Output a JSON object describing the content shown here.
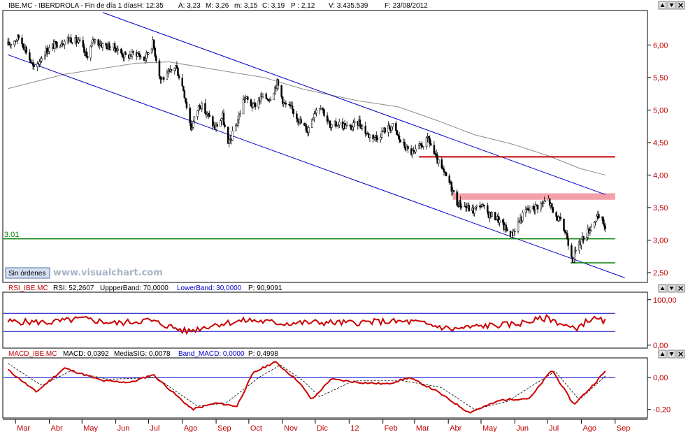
{
  "colors": {
    "price_axis": "#c00000",
    "channel": "#0000c8",
    "support": "#008000",
    "resistance": "#c80000",
    "zone": "#f4a0a8",
    "ma": "#8c8c8c",
    "rsi": "#cc0000",
    "macd": "#cc0000",
    "signal": "#000000"
  },
  "main_panel": {
    "header_symbol": "IBE.MC - IBERDROLA - Fin de día 1 días",
    "header_H": "H: 12:35",
    "header_A": "A: 3,23",
    "header_M": "M: 3,26",
    "header_m": "m: 3,15",
    "header_C": "C: 3,19",
    "header_P": "P : 2,12",
    "header_V": "V: 3.435.539",
    "header_F": "F: 23/08/2012",
    "level_label": "3.01",
    "orders_button": "Sin órdenes",
    "watermark": "www.visualchart.com"
  },
  "rsi_panel": {
    "name": "RSI_IBE.MC",
    "rsi": "RSI: 52,2607",
    "upper": "UppperBand: 70,0000",
    "lower": "LowerBand: 30,0000",
    "p": "P: 90,9091"
  },
  "macd_panel": {
    "name": "MACD_IBE.MC",
    "macd": "MACD: 0,0392",
    "signal": "MediaSIG: 0,0078",
    "band": "Band_MACD: 0,0000",
    "p": "P: 0,4998"
  },
  "window_icons": [
    "arrow-up-icon",
    "arrow-down-icon",
    "close-icon"
  ],
  "chart_data": [
    {
      "type": "candlestick",
      "y_tick_labels": [
        "6,00",
        "5,50",
        "5,00",
        "4,50",
        "4,00",
        "3,50",
        "3,00",
        "2,50"
      ],
      "y_ticks": [
        6.0,
        5.5,
        5.0,
        4.5,
        4.0,
        3.5,
        3.0,
        2.5
      ],
      "ylim": [
        2.36,
        6.52
      ],
      "x_tick_labels": [
        "Mar",
        "Abr",
        "May",
        "Jun",
        "Jul",
        "Ago",
        "Sep",
        "Oct",
        "Nov",
        "Dic",
        "12",
        "Feb",
        "Mar",
        "Abr",
        "May",
        "Jun",
        "Jul",
        "Ago",
        "Sep"
      ],
      "x_ticks": [
        "2011-03-01",
        "2011-04-01",
        "2011-05-01",
        "2011-06-01",
        "2011-07-01",
        "2011-08-01",
        "2011-09-01",
        "2011-10-01",
        "2011-11-01",
        "2011-12-01",
        "2012-01-01",
        "2012-02-01",
        "2012-03-01",
        "2012-04-01",
        "2012-05-01",
        "2012-06-01",
        "2012-07-01",
        "2012-08-01",
        "2012-09-01"
      ],
      "xlim": [
        "2011-02-18",
        "2012-09-30"
      ],
      "close_path": [
        [
          "2011-02-22",
          6.0
        ],
        [
          "2011-03-04",
          6.12
        ],
        [
          "2011-03-10",
          5.95
        ],
        [
          "2011-03-18",
          5.62
        ],
        [
          "2011-03-28",
          5.9
        ],
        [
          "2011-04-08",
          6.02
        ],
        [
          "2011-04-20",
          6.1
        ],
        [
          "2011-04-29",
          6.03
        ],
        [
          "2011-05-05",
          5.82
        ],
        [
          "2011-05-12",
          6.08
        ],
        [
          "2011-05-20",
          6.0
        ],
        [
          "2011-05-31",
          5.96
        ],
        [
          "2011-06-10",
          5.82
        ],
        [
          "2011-06-20",
          5.88
        ],
        [
          "2011-06-27",
          5.78
        ],
        [
          "2011-07-05",
          6.03
        ],
        [
          "2011-07-12",
          5.48
        ],
        [
          "2011-07-18",
          5.52
        ],
        [
          "2011-07-26",
          5.68
        ],
        [
          "2011-08-02",
          5.32
        ],
        [
          "2011-08-09",
          4.72
        ],
        [
          "2011-08-17",
          5.1
        ],
        [
          "2011-08-25",
          4.9
        ],
        [
          "2011-08-31",
          4.72
        ],
        [
          "2011-09-07",
          4.9
        ],
        [
          "2011-09-12",
          4.45
        ],
        [
          "2011-09-20",
          4.8
        ],
        [
          "2011-09-27",
          5.2
        ],
        [
          "2011-10-05",
          5.05
        ],
        [
          "2011-10-13",
          5.2
        ],
        [
          "2011-10-20",
          5.18
        ],
        [
          "2011-10-27",
          5.42
        ],
        [
          "2011-11-02",
          5.1
        ],
        [
          "2011-11-10",
          5.0
        ],
        [
          "2011-11-18",
          4.8
        ],
        [
          "2011-11-24",
          4.68
        ],
        [
          "2011-11-30",
          4.98
        ],
        [
          "2011-12-06",
          5.08
        ],
        [
          "2011-12-15",
          4.72
        ],
        [
          "2011-12-22",
          4.8
        ],
        [
          "2012-01-02",
          4.72
        ],
        [
          "2012-01-10",
          4.82
        ],
        [
          "2012-01-18",
          4.62
        ],
        [
          "2012-01-26",
          4.58
        ],
        [
          "2012-02-03",
          4.7
        ],
        [
          "2012-02-10",
          4.75
        ],
        [
          "2012-02-17",
          4.52
        ],
        [
          "2012-02-24",
          4.38
        ],
        [
          "2012-03-01",
          4.33
        ],
        [
          "2012-03-07",
          4.45
        ],
        [
          "2012-03-14",
          4.55
        ],
        [
          "2012-03-20",
          4.28
        ],
        [
          "2012-03-28",
          4.02
        ],
        [
          "2012-04-03",
          3.85
        ],
        [
          "2012-04-09",
          3.58
        ],
        [
          "2012-04-16",
          3.52
        ],
        [
          "2012-04-24",
          3.45
        ],
        [
          "2012-04-30",
          3.55
        ],
        [
          "2012-05-08",
          3.4
        ],
        [
          "2012-05-15",
          3.35
        ],
        [
          "2012-05-22",
          3.2
        ],
        [
          "2012-05-29",
          3.08
        ],
        [
          "2012-06-05",
          3.3
        ],
        [
          "2012-06-11",
          3.45
        ],
        [
          "2012-06-18",
          3.5
        ],
        [
          "2012-06-25",
          3.55
        ],
        [
          "2012-07-02",
          3.62
        ],
        [
          "2012-07-06",
          3.42
        ],
        [
          "2012-07-12",
          3.3
        ],
        [
          "2012-07-18",
          3.1
        ],
        [
          "2012-07-24",
          2.72
        ],
        [
          "2012-07-27",
          2.82
        ],
        [
          "2012-08-01",
          3.0
        ],
        [
          "2012-08-06",
          3.1
        ],
        [
          "2012-08-10",
          3.22
        ],
        [
          "2012-08-15",
          3.35
        ],
        [
          "2012-08-20",
          3.3
        ],
        [
          "2012-08-23",
          3.19
        ]
      ],
      "moving_average": [
        [
          "2011-02-22",
          5.33
        ],
        [
          "2011-04-15",
          5.55
        ],
        [
          "2011-06-20",
          5.72
        ],
        [
          "2011-07-20",
          5.74
        ],
        [
          "2011-09-01",
          5.62
        ],
        [
          "2011-10-15",
          5.5
        ],
        [
          "2011-11-20",
          5.32
        ],
        [
          "2012-01-10",
          5.14
        ],
        [
          "2012-02-15",
          5.05
        ],
        [
          "2012-03-20",
          4.85
        ],
        [
          "2012-04-25",
          4.62
        ],
        [
          "2012-05-31",
          4.47
        ],
        [
          "2012-07-01",
          4.3
        ],
        [
          "2012-07-31",
          4.1
        ],
        [
          "2012-08-23",
          4.0
        ]
      ],
      "channel_upper": [
        [
          "2011-05-20",
          6.5
        ],
        [
          "2012-08-23",
          3.7
        ]
      ],
      "channel_lower": [
        [
          "2011-02-22",
          5.85
        ],
        [
          "2012-09-10",
          2.42
        ]
      ],
      "resistance_line": {
        "y": 4.28,
        "from": "2012-03-05",
        "to": "2012-09-01"
      },
      "resistance_zone": {
        "y0": 3.62,
        "y1": 3.72,
        "from": "2012-04-05",
        "to": "2012-09-01"
      },
      "support_line_long": {
        "y": 3.02,
        "from": "2011-02-18",
        "to": "2012-09-01"
      },
      "support_line_short": {
        "y": 2.65,
        "from": "2012-07-22",
        "to": "2012-09-01"
      }
    },
    {
      "type": "line",
      "title": "RSI_IBE.MC",
      "y_tick_labels": [
        "100,00",
        "0,00"
      ],
      "y_ticks": [
        100,
        0
      ],
      "ylim": [
        -5,
        115
      ],
      "bands": [
        70,
        30
      ],
      "series": [
        {
          "name": "RSI",
          "path": [
            [
              "2011-02-22",
              52
            ],
            [
              "2011-04-01",
              50
            ],
            [
              "2011-05-01",
              58
            ],
            [
              "2011-06-01",
              48
            ],
            [
              "2011-07-01",
              55
            ],
            [
              "2011-08-05",
              30
            ],
            [
              "2011-09-01",
              46
            ],
            [
              "2011-10-01",
              55
            ],
            [
              "2011-11-01",
              48
            ],
            [
              "2011-12-01",
              50
            ],
            [
              "2012-01-01",
              49
            ],
            [
              "2012-02-01",
              52
            ],
            [
              "2012-03-01",
              51
            ],
            [
              "2012-04-05",
              35
            ],
            [
              "2012-05-01",
              42
            ],
            [
              "2012-06-01",
              46
            ],
            [
              "2012-07-01",
              60
            ],
            [
              "2012-07-25",
              35
            ],
            [
              "2012-08-10",
              58
            ],
            [
              "2012-08-23",
              52.26
            ]
          ]
        }
      ]
    },
    {
      "type": "line",
      "title": "MACD_IBE.MC",
      "y_tick_labels": [
        "0,00",
        "-0,20"
      ],
      "y_ticks": [
        0,
        -0.2
      ],
      "ylim": [
        -0.25,
        0.12
      ],
      "band": 0,
      "series": [
        {
          "name": "MACD",
          "path": [
            [
              "2011-02-22",
              0.05
            ],
            [
              "2011-03-20",
              -0.09
            ],
            [
              "2011-04-15",
              0.06
            ],
            [
              "2011-05-20",
              -0.02
            ],
            [
              "2011-06-15",
              -0.03
            ],
            [
              "2011-07-05",
              0.02
            ],
            [
              "2011-08-10",
              -0.2
            ],
            [
              "2011-09-01",
              -0.16
            ],
            [
              "2011-09-20",
              -0.18
            ],
            [
              "2011-10-05",
              0.03
            ],
            [
              "2011-10-25",
              0.1
            ],
            [
              "2011-11-15",
              -0.02
            ],
            [
              "2011-11-28",
              -0.14
            ],
            [
              "2011-12-15",
              -0.01
            ],
            [
              "2012-01-10",
              -0.03
            ],
            [
              "2012-02-05",
              -0.04
            ],
            [
              "2012-02-25",
              0.0
            ],
            [
              "2012-03-20",
              -0.08
            ],
            [
              "2012-04-20",
              -0.22
            ],
            [
              "2012-05-20",
              -0.14
            ],
            [
              "2012-06-15",
              -0.13
            ],
            [
              "2012-07-05",
              0.05
            ],
            [
              "2012-07-25",
              -0.17
            ],
            [
              "2012-08-10",
              -0.06
            ],
            [
              "2012-08-23",
              0.04
            ]
          ]
        },
        {
          "name": "MediaSIG",
          "path": [
            [
              "2011-02-22",
              0.09
            ],
            [
              "2011-03-25",
              -0.05
            ],
            [
              "2011-04-20",
              0.04
            ],
            [
              "2011-05-25",
              -0.01
            ],
            [
              "2011-07-08",
              0.0
            ],
            [
              "2011-08-15",
              -0.18
            ],
            [
              "2011-09-10",
              -0.16
            ],
            [
              "2011-10-10",
              0.0
            ],
            [
              "2011-10-30",
              0.08
            ],
            [
              "2011-11-20",
              -0.02
            ],
            [
              "2011-12-05",
              -0.12
            ],
            [
              "2012-01-05",
              -0.02
            ],
            [
              "2012-02-20",
              -0.02
            ],
            [
              "2012-03-25",
              -0.06
            ],
            [
              "2012-04-25",
              -0.2
            ],
            [
              "2012-05-25",
              -0.15
            ],
            [
              "2012-07-08",
              0.04
            ],
            [
              "2012-07-30",
              -0.14
            ],
            [
              "2012-08-23",
              0.01
            ]
          ]
        }
      ]
    }
  ]
}
